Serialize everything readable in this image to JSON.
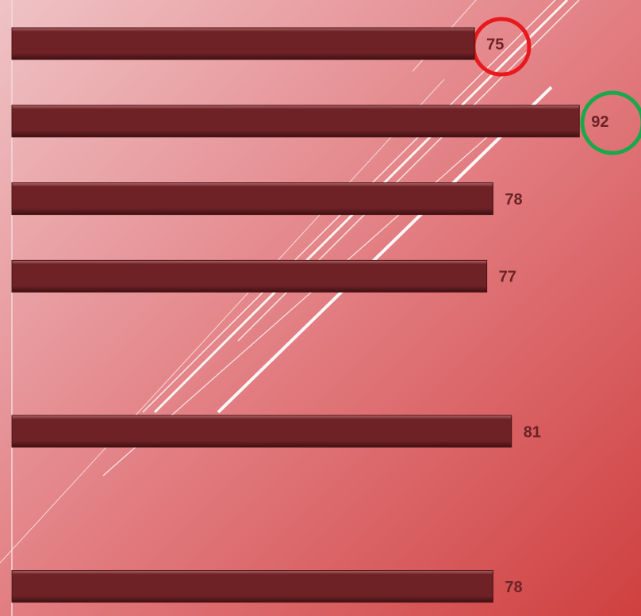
{
  "chart_data": {
    "type": "bar",
    "orientation": "horizontal",
    "categories": [
      null,
      null,
      null,
      null,
      null,
      null,
      null,
      null
    ],
    "values": [
      75,
      92,
      78,
      77,
      null,
      81,
      null,
      78
    ],
    "color": "#6e2226",
    "xlim": [
      0,
      102
    ]
  }
}
